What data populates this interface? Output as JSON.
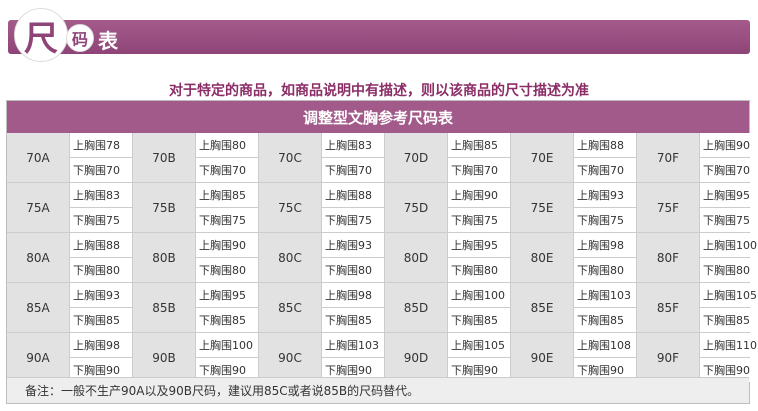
{
  "header": {
    "badge_char_big": "尺",
    "badge_char_small": "码",
    "badge_char_tail": "表"
  },
  "notice": "对于特定的商品，如商品说明中有描述，则以该商品的尺寸描述为准",
  "table": {
    "title": "调整型文胸参考尺码表",
    "rows": [
      [
        {
          "size": "70A",
          "upper": "上胸围78",
          "lower": "下胸围70"
        },
        {
          "size": "70B",
          "upper": "上胸围80",
          "lower": "下胸围70"
        },
        {
          "size": "70C",
          "upper": "上胸围83",
          "lower": "下胸围70"
        },
        {
          "size": "70D",
          "upper": "上胸围85",
          "lower": "下胸围70"
        },
        {
          "size": "70E",
          "upper": "上胸围88",
          "lower": "下胸围70"
        },
        {
          "size": "70F",
          "upper": "上胸围90",
          "lower": "下胸围70"
        }
      ],
      [
        {
          "size": "75A",
          "upper": "上胸围83",
          "lower": "下胸围75"
        },
        {
          "size": "75B",
          "upper": "上胸围85",
          "lower": "下胸围75"
        },
        {
          "size": "75C",
          "upper": "上胸围88",
          "lower": "下胸围75"
        },
        {
          "size": "75D",
          "upper": "上胸围90",
          "lower": "下胸围75"
        },
        {
          "size": "75E",
          "upper": "上胸围93",
          "lower": "下胸围75"
        },
        {
          "size": "75F",
          "upper": "上胸围95",
          "lower": "下胸围75"
        }
      ],
      [
        {
          "size": "80A",
          "upper": "上胸围88",
          "lower": "下胸围80"
        },
        {
          "size": "80B",
          "upper": "上胸围90",
          "lower": "下胸围80"
        },
        {
          "size": "80C",
          "upper": "上胸围93",
          "lower": "下胸围80"
        },
        {
          "size": "80D",
          "upper": "上胸围95",
          "lower": "下胸围80"
        },
        {
          "size": "80E",
          "upper": "上胸围98",
          "lower": "下胸围80"
        },
        {
          "size": "80F",
          "upper": "上胸围100",
          "lower": "下胸围80"
        }
      ],
      [
        {
          "size": "85A",
          "upper": "上胸围93",
          "lower": "下胸围85"
        },
        {
          "size": "85B",
          "upper": "上胸围95",
          "lower": "下胸围85"
        },
        {
          "size": "85C",
          "upper": "上胸围98",
          "lower": "下胸围85"
        },
        {
          "size": "85D",
          "upper": "上胸围100",
          "lower": "下胸围85"
        },
        {
          "size": "85E",
          "upper": "上胸围103",
          "lower": "下胸围85"
        },
        {
          "size": "85F",
          "upper": "上胸围105",
          "lower": "下胸围85"
        }
      ],
      [
        {
          "size": "90A",
          "upper": "上胸围98",
          "lower": "下胸围90"
        },
        {
          "size": "90B",
          "upper": "上胸围100",
          "lower": "下胸围90"
        },
        {
          "size": "90C",
          "upper": "上胸围103",
          "lower": "下胸围90"
        },
        {
          "size": "90D",
          "upper": "上胸围105",
          "lower": "下胸围90"
        },
        {
          "size": "90E",
          "upper": "上胸围108",
          "lower": "下胸围90"
        },
        {
          "size": "90F",
          "upper": "上胸围110",
          "lower": "下胸围90"
        }
      ]
    ]
  },
  "note": "备注：一般不生产90A以及90B尺码，建议用85C或者说85B的尺码替代。",
  "colors": {
    "banner": "#8f4478",
    "notice": "#8b2d67",
    "table_header": "#a25a8a"
  }
}
